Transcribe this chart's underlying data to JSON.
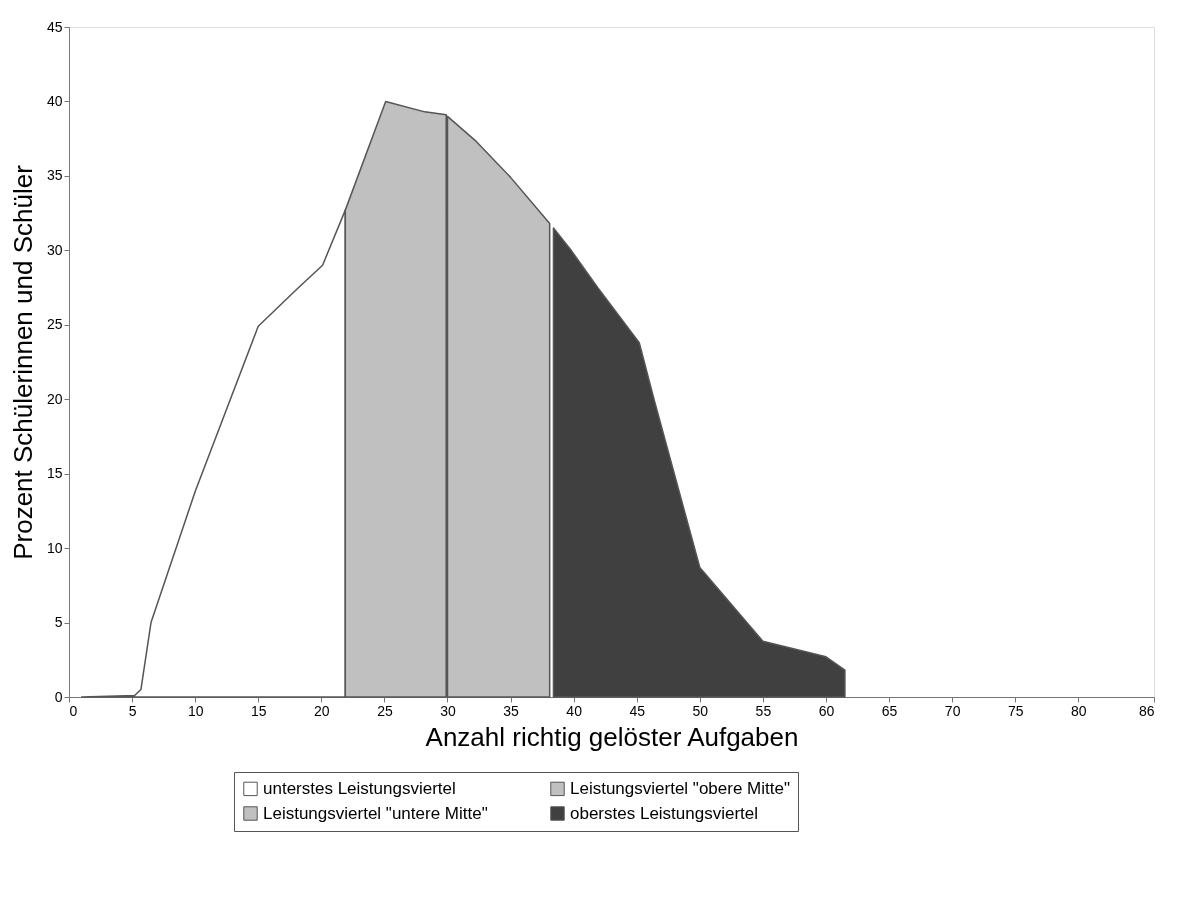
{
  "chart_data": {
    "type": "area",
    "xlabel": "Anzahl richtig gelöster Aufgaben",
    "ylabel": "Prozent Schülerinnen und Schüler",
    "xlim": [
      0,
      86
    ],
    "xticks": [
      0,
      5,
      10,
      15,
      20,
      25,
      30,
      35,
      40,
      45,
      50,
      55,
      60,
      65,
      70,
      75,
      80,
      86
    ],
    "ylim": [
      0,
      45
    ],
    "yticks": [
      0,
      5,
      10,
      15,
      20,
      25,
      30,
      35,
      40,
      45
    ],
    "grid": false,
    "legend": "bottom",
    "series": [
      {
        "name": "unterstes Leistungsviertel",
        "color": "#ffffff",
        "x": [
          1,
          5.2,
          5.7,
          6.5,
          10,
          15,
          18.2,
          20.1,
          21.9
        ],
        "values": [
          0,
          0.1,
          0.5,
          5,
          13.8,
          24.9,
          27.5,
          29,
          32.7
        ]
      },
      {
        "name": "Leistungsviertel \"untere Mitte\"",
        "color": "#c0c0c0",
        "x": [
          21.9,
          25.1,
          28.2,
          29.9
        ],
        "values": [
          32.7,
          40,
          39.3,
          39.1
        ]
      },
      {
        "name": "Leistungsviertel \"obere Mitte\"",
        "color": "#c0c0c0",
        "x": [
          30,
          32.3,
          35,
          38.1
        ],
        "values": [
          39,
          37.3,
          34.9,
          31.8
        ]
      },
      {
        "name": "oberstes Leistungsviertel",
        "color": "#404040",
        "x": [
          38.4,
          39.8,
          41.9,
          45.2,
          46.4,
          50,
          55,
          60,
          61.5
        ],
        "values": [
          31.5,
          30,
          27.5,
          23.8,
          19.9,
          8.7,
          3.75,
          2.7,
          1.8
        ]
      }
    ]
  }
}
